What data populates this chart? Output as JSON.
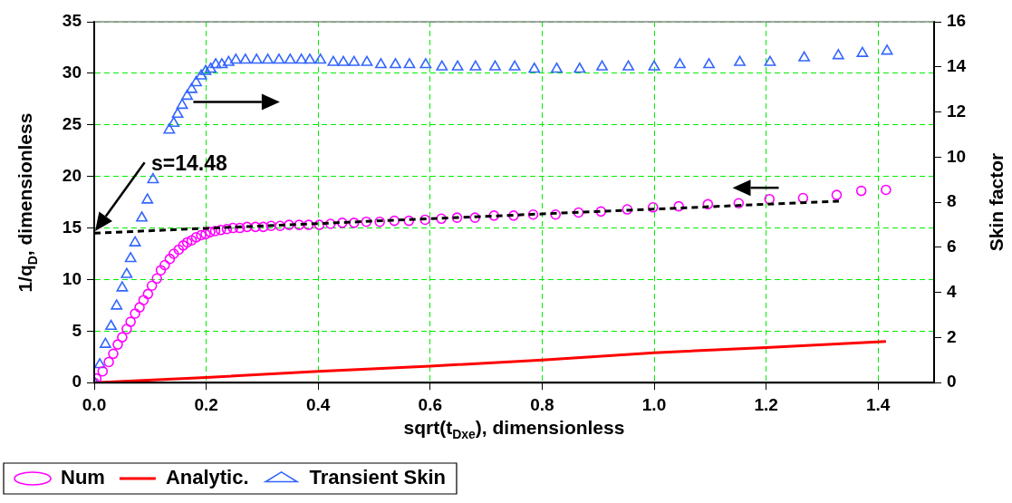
{
  "chart_data": {
    "type": "scatter",
    "xlabel": "sqrt(t$_{Dxe}$), dimensionless",
    "ylabel": "1/q$_{D}$, dimensionless",
    "y2label": "Skin factor",
    "xlim": [
      0,
      1.5
    ],
    "xticks": [
      {
        "value": 0,
        "label": "0.0"
      },
      0.2,
      0.4,
      0.6,
      0.8,
      {
        "value": 1,
        "label": "1.0"
      },
      1.2,
      1.4
    ],
    "ylim": [
      0,
      35
    ],
    "yticks": [
      0,
      5,
      10,
      15,
      20,
      25,
      30,
      35
    ],
    "y2lim": [
      0,
      16
    ],
    "y2ticks": [
      0,
      2,
      4,
      6,
      8,
      10,
      12,
      14,
      16
    ],
    "grid": true,
    "legend": "bottom left",
    "annotations": [
      "s=14.48"
    ],
    "series": [
      {
        "name": "Num",
        "type": "scatter",
        "marker": "circle",
        "color": "#ff00ff",
        "x": [
          0,
          0.004,
          0.015,
          0.026,
          0.034,
          0.042,
          0.05,
          0.058,
          0.065,
          0.073,
          0.081,
          0.088,
          0.096,
          0.103,
          0.112,
          0.119,
          0.126,
          0.135,
          0.142,
          0.151,
          0.159,
          0.166,
          0.174,
          0.182,
          0.191,
          0.199,
          0.207,
          0.216,
          0.226,
          0.237,
          0.248,
          0.26,
          0.273,
          0.288,
          0.302,
          0.316,
          0.332,
          0.348,
          0.366,
          0.383,
          0.402,
          0.422,
          0.443,
          0.464,
          0.486,
          0.51,
          0.536,
          0.562,
          0.591,
          0.62,
          0.648,
          0.68,
          0.714,
          0.749,
          0.784,
          0.824,
          0.865,
          0.905,
          0.952,
          0.998,
          1.044,
          1.096,
          1.151,
          1.206,
          1.266,
          1.326,
          1.37,
          1.414
        ],
        "values": [
          0,
          0.4,
          1.1,
          2.0,
          2.8,
          3.7,
          4.4,
          5.2,
          5.9,
          6.7,
          7.3,
          8.0,
          8.6,
          9.4,
          10.1,
          10.9,
          11.4,
          12.0,
          12.5,
          12.9,
          13.3,
          13.6,
          13.8,
          14.1,
          14.3,
          14.4,
          14.6,
          14.7,
          14.8,
          14.9,
          15.0,
          15.0,
          15.1,
          15.1,
          15.1,
          15.2,
          15.2,
          15.3,
          15.3,
          15.3,
          15.3,
          15.4,
          15.5,
          15.5,
          15.6,
          15.6,
          15.7,
          15.7,
          15.8,
          15.9,
          16.0,
          16.0,
          16.2,
          16.2,
          16.3,
          16.3,
          16.5,
          16.6,
          16.8,
          17.0,
          17.1,
          17.3,
          17.4,
          17.8,
          17.9,
          18.2,
          18.6,
          18.7
        ]
      },
      {
        "name": "Analytic.",
        "type": "line",
        "marker": "none",
        "color": "#ff0000",
        "x": [
          0,
          0.2,
          0.4,
          0.6,
          0.8,
          1.0,
          1.2,
          1.414
        ],
        "values": [
          0,
          0.5,
          1.1,
          1.6,
          2.2,
          2.9,
          3.4,
          4.0
        ]
      },
      {
        "name": "Transient Skin",
        "type": "scatter",
        "marker": "triangle",
        "axis": "y2",
        "color": "#3366ff",
        "x": [
          0,
          0.01,
          0.02,
          0.03,
          0.04,
          0.05,
          0.058,
          0.065,
          0.073,
          0.085,
          0.095,
          0.105,
          0.134,
          0.142,
          0.149,
          0.157,
          0.166,
          0.174,
          0.182,
          0.191,
          0.199,
          0.208,
          0.217,
          0.228,
          0.24,
          0.253,
          0.27,
          0.29,
          0.31,
          0.33,
          0.35,
          0.37,
          0.385,
          0.404,
          0.427,
          0.445,
          0.464,
          0.487,
          0.512,
          0.538,
          0.563,
          0.592,
          0.621,
          0.649,
          0.681,
          0.716,
          0.751,
          0.786,
          0.826,
          0.867,
          0.907,
          0.954,
          1.0,
          1.046,
          1.098,
          1.153,
          1.207,
          1.268,
          1.329,
          1.372,
          1.416
        ],
        "values": [
          0,
          0.8,
          1.7,
          2.5,
          3.4,
          4.2,
          4.8,
          5.5,
          6.2,
          7.3,
          8.1,
          9.0,
          11.2,
          11.5,
          11.9,
          12.3,
          12.7,
          13.0,
          13.3,
          13.6,
          13.8,
          13.9,
          14.1,
          14.1,
          14.2,
          14.3,
          14.3,
          14.3,
          14.3,
          14.3,
          14.3,
          14.3,
          14.3,
          14.3,
          14.2,
          14.2,
          14.2,
          14.2,
          14.1,
          14.1,
          14.1,
          14.1,
          14.0,
          14.0,
          14.0,
          14.0,
          14.0,
          13.9,
          13.9,
          13.9,
          14.0,
          14.0,
          14.0,
          14.1,
          14.1,
          14.2,
          14.2,
          14.4,
          14.5,
          14.6,
          14.7
        ]
      },
      {
        "type": "line",
        "marker": "none",
        "line_style": "dashed",
        "color": "#000000",
        "x": [
          0,
          1.33
        ],
        "values": [
          14.5,
          17.6
        ]
      }
    ]
  }
}
